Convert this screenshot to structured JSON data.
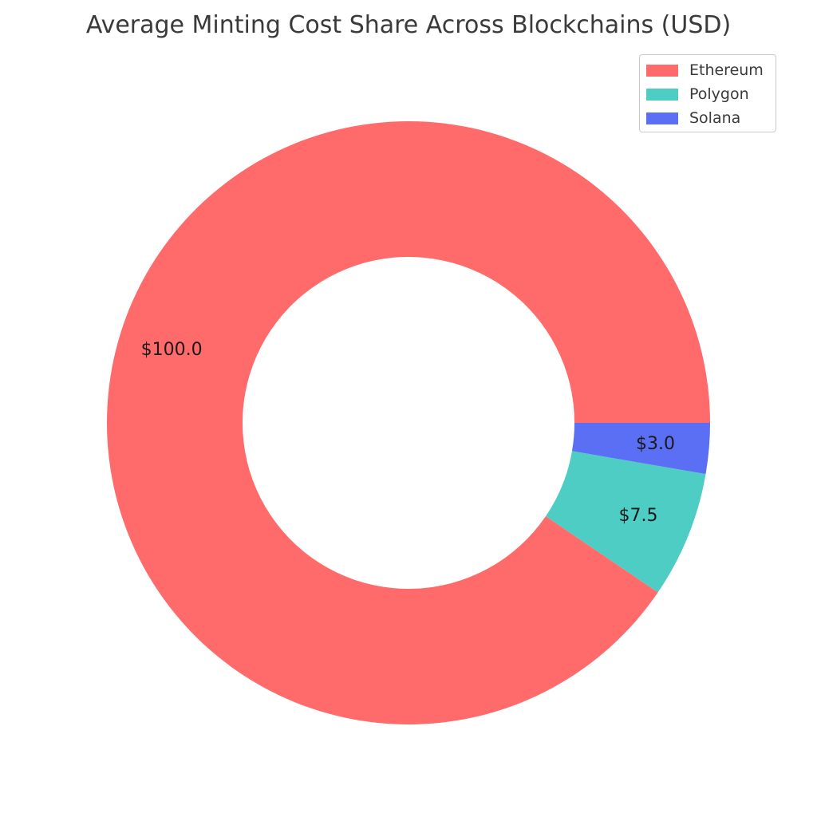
{
  "chart_data": {
    "type": "pie",
    "variant": "donut",
    "title": "Average Minting Cost Share Across Blockchains (USD)",
    "categories": [
      "Ethereum",
      "Polygon",
      "Solana"
    ],
    "values": [
      100.0,
      7.5,
      3.0
    ],
    "labels": [
      "$100.0",
      "$7.5",
      "$3.0"
    ],
    "colors": [
      "#ff6b6b",
      "#4ecdc4",
      "#5b6ff5"
    ],
    "legend": {
      "position": "top-right",
      "entries": [
        "Ethereum",
        "Polygon",
        "Solana"
      ]
    }
  }
}
